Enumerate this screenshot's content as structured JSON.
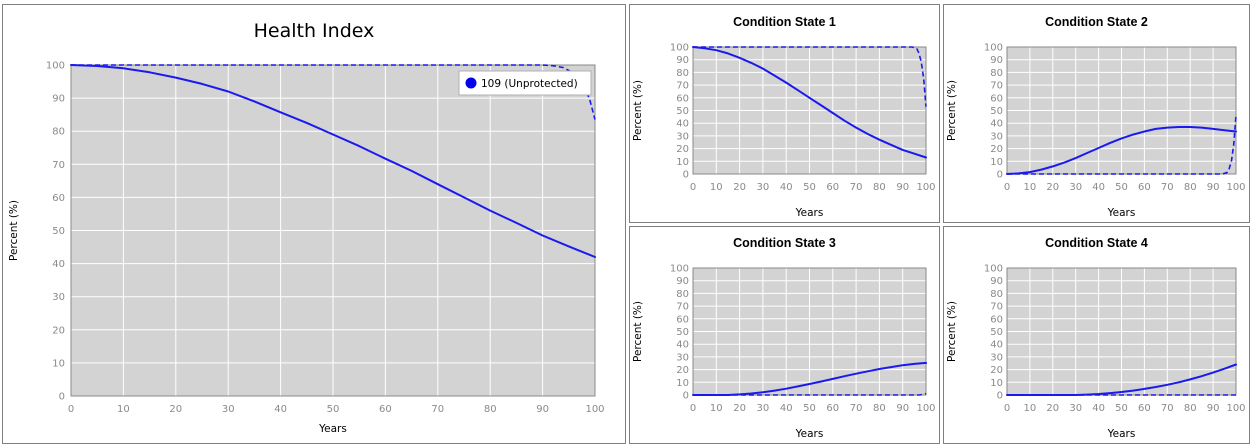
{
  "colors": {
    "plot_background": "#d3d3d3",
    "grid": "#ffffff",
    "series": "#1a1aee",
    "border": "#7f7f7f"
  },
  "chart_data": [
    {
      "id": "health-index",
      "type": "line",
      "title": "Health Index",
      "xlabel": "Years",
      "ylabel": "Percent (%)",
      "xlim": [
        0,
        100
      ],
      "ylim": [
        0,
        100
      ],
      "xticks": [
        0,
        10,
        20,
        30,
        40,
        50,
        60,
        70,
        80,
        90,
        100
      ],
      "yticks": [
        0,
        10,
        20,
        30,
        40,
        50,
        60,
        70,
        80,
        90,
        100
      ],
      "grid": true,
      "legend": {
        "placement": "top-right",
        "entries": [
          "109 (Unprotected)"
        ]
      },
      "series": [
        {
          "name": "109 (Unprotected)",
          "style": "solid",
          "x": [
            0,
            5,
            10,
            15,
            20,
            25,
            30,
            35,
            40,
            45,
            50,
            55,
            60,
            65,
            70,
            75,
            80,
            85,
            90,
            95,
            100
          ],
          "y": [
            100,
            99.7,
            99,
            97.8,
            96.2,
            94.3,
            92,
            89,
            85.7,
            82.5,
            79,
            75.5,
            71.7,
            68,
            64,
            60,
            56,
            52.3,
            48.5,
            45.2,
            42
          ]
        },
        {
          "style": "dashed",
          "x": [
            0,
            90,
            92,
            94,
            96,
            98,
            99,
            100
          ],
          "y": [
            100,
            100,
            99.8,
            99.2,
            97.5,
            93.5,
            89.5,
            83.5
          ]
        }
      ]
    },
    {
      "id": "condition-state-1",
      "type": "line",
      "title": "Condition State 1",
      "xlabel": "Years",
      "ylabel": "Percent (%)",
      "xlim": [
        0,
        100
      ],
      "ylim": [
        0,
        100
      ],
      "xticks": [
        0,
        10,
        20,
        30,
        40,
        50,
        60,
        70,
        80,
        90,
        100
      ],
      "yticks": [
        0,
        10,
        20,
        30,
        40,
        50,
        60,
        70,
        80,
        90,
        100
      ],
      "grid": true,
      "series": [
        {
          "style": "solid",
          "x": [
            0,
            5,
            10,
            15,
            20,
            25,
            30,
            35,
            40,
            45,
            50,
            55,
            60,
            65,
            70,
            75,
            80,
            85,
            90,
            95,
            100
          ],
          "y": [
            100,
            99,
            97.5,
            95,
            91.5,
            87.5,
            83,
            77.5,
            72,
            66,
            60,
            54,
            48,
            42,
            36.5,
            31.5,
            27,
            23,
            19,
            16,
            13
          ]
        },
        {
          "style": "dashed",
          "x": [
            0,
            94,
            96,
            97,
            98,
            99,
            100
          ],
          "y": [
            100,
            100,
            99,
            95,
            88,
            75,
            53
          ]
        }
      ]
    },
    {
      "id": "condition-state-2",
      "type": "line",
      "title": "Condition State 2",
      "xlabel": "Years",
      "ylabel": "Percent (%)",
      "xlim": [
        0,
        100
      ],
      "ylim": [
        0,
        100
      ],
      "xticks": [
        0,
        10,
        20,
        30,
        40,
        50,
        60,
        70,
        80,
        90,
        100
      ],
      "yticks": [
        0,
        10,
        20,
        30,
        40,
        50,
        60,
        70,
        80,
        90,
        100
      ],
      "grid": true,
      "series": [
        {
          "style": "solid",
          "x": [
            0,
            5,
            10,
            15,
            20,
            25,
            30,
            35,
            40,
            45,
            50,
            55,
            60,
            65,
            70,
            75,
            80,
            85,
            90,
            95,
            100
          ],
          "y": [
            0,
            0.5,
            1.5,
            3.5,
            6,
            9,
            12.5,
            16.5,
            20.5,
            24.5,
            28,
            31,
            33.5,
            35.5,
            36.5,
            37,
            37,
            36.5,
            35.5,
            34.5,
            33.5
          ]
        },
        {
          "style": "dashed",
          "x": [
            0,
            94,
            96,
            97,
            98,
            99,
            100
          ],
          "y": [
            0,
            0,
            1,
            4,
            10,
            23,
            46
          ]
        }
      ]
    },
    {
      "id": "condition-state-3",
      "type": "line",
      "title": "Condition State 3",
      "xlabel": "Years",
      "ylabel": "Percent (%)",
      "xlim": [
        0,
        100
      ],
      "ylim": [
        0,
        100
      ],
      "xticks": [
        0,
        10,
        20,
        30,
        40,
        50,
        60,
        70,
        80,
        90,
        100
      ],
      "yticks": [
        0,
        10,
        20,
        30,
        40,
        50,
        60,
        70,
        80,
        90,
        100
      ],
      "grid": true,
      "series": [
        {
          "style": "solid",
          "x": [
            0,
            15,
            20,
            25,
            30,
            35,
            40,
            45,
            50,
            55,
            60,
            65,
            70,
            75,
            80,
            85,
            90,
            95,
            100
          ],
          "y": [
            0,
            0,
            0.5,
            1.2,
            2.2,
            3.5,
            5,
            6.8,
            8.7,
            10.6,
            12.7,
            14.8,
            16.8,
            18.7,
            20.5,
            22,
            23.5,
            24.5,
            25.3
          ]
        },
        {
          "style": "dashed",
          "x": [
            0,
            97,
            98,
            99,
            100
          ],
          "y": [
            0,
            0,
            0.2,
            0.6,
            1.2
          ]
        }
      ]
    },
    {
      "id": "condition-state-4",
      "type": "line",
      "title": "Condition State 4",
      "xlabel": "Years",
      "ylabel": "Percent (%)",
      "xlim": [
        0,
        100
      ],
      "ylim": [
        0,
        100
      ],
      "xticks": [
        0,
        10,
        20,
        30,
        40,
        50,
        60,
        70,
        80,
        90,
        100
      ],
      "yticks": [
        0,
        10,
        20,
        30,
        40,
        50,
        60,
        70,
        80,
        90,
        100
      ],
      "grid": true,
      "series": [
        {
          "style": "solid",
          "x": [
            0,
            30,
            35,
            40,
            45,
            50,
            55,
            60,
            65,
            70,
            75,
            80,
            85,
            90,
            95,
            100
          ],
          "y": [
            0,
            0,
            0.3,
            0.8,
            1.5,
            2.4,
            3.5,
            4.8,
            6.3,
            8,
            10,
            12.3,
            14.8,
            17.6,
            20.7,
            24
          ]
        },
        {
          "style": "dashed",
          "x": [
            0,
            100
          ],
          "y": [
            0,
            0
          ]
        }
      ]
    }
  ]
}
